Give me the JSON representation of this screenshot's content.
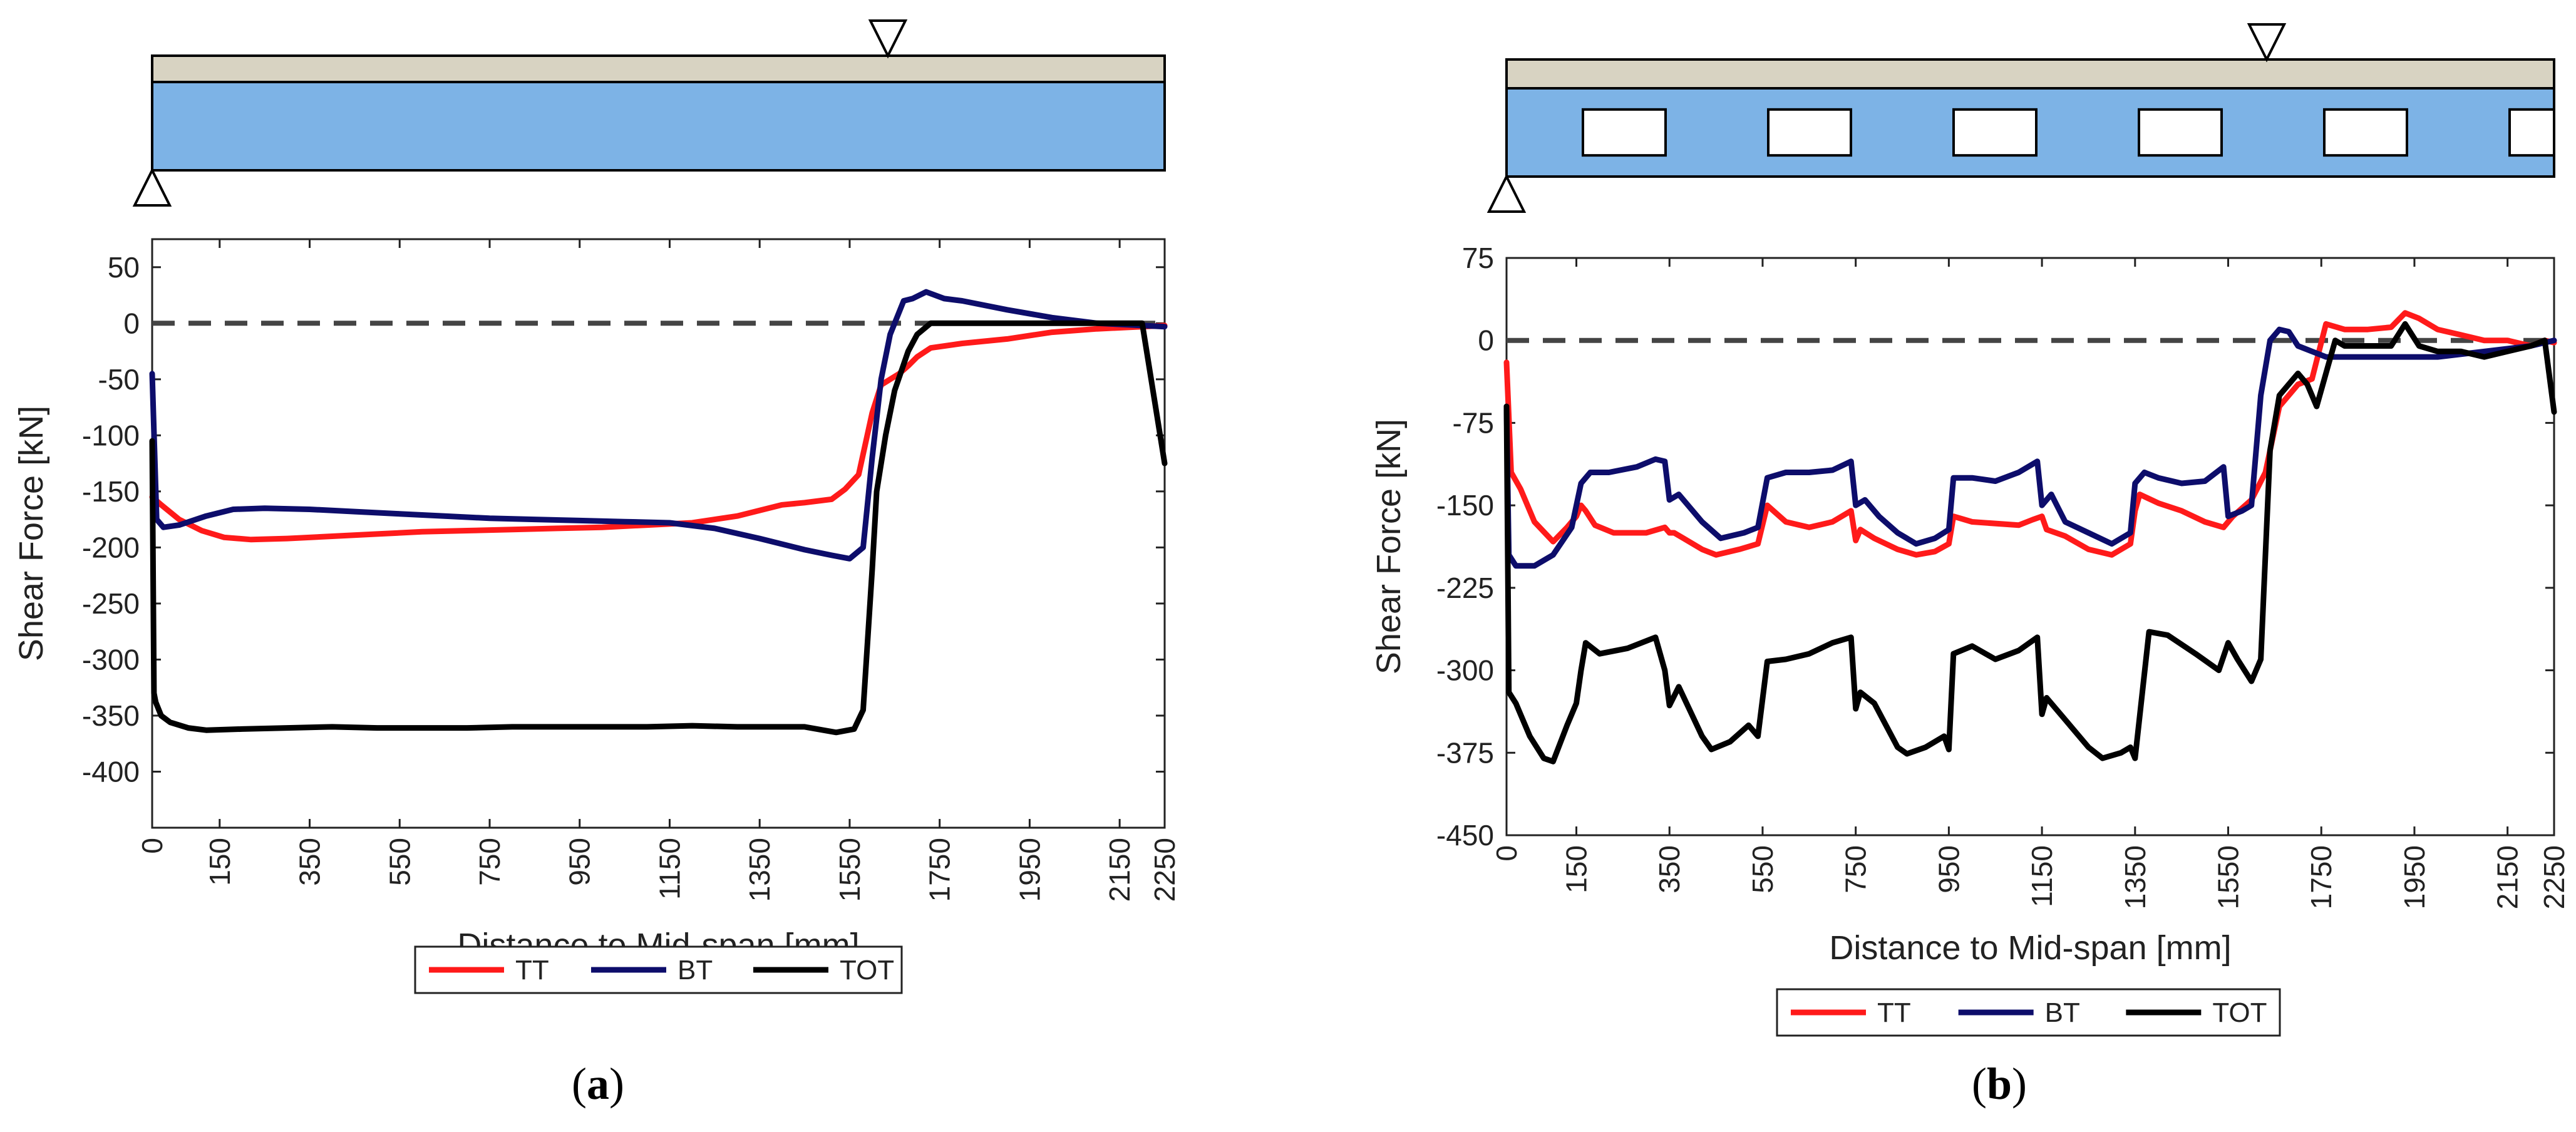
{
  "panels": [
    {
      "id": "a",
      "caption_letter": "a",
      "beam": {
        "openings": 0
      },
      "chart_data": {
        "type": "line",
        "xlabel": "Distance to Mid-span [mm]",
        "ylabel": "Shear Force [kN]",
        "xlim": [
          0,
          2250
        ],
        "ylim": [
          -450,
          75
        ],
        "xticks": [
          0,
          150,
          350,
          550,
          750,
          950,
          1150,
          1350,
          1550,
          1750,
          1950,
          2150,
          2250
        ],
        "yticks": [
          50,
          0,
          -50,
          -100,
          -150,
          -200,
          -250,
          -300,
          -350,
          -400
        ],
        "zero_line": true,
        "legend": [
          "TT",
          "BT",
          "TOT"
        ],
        "series": [
          {
            "name": "TT",
            "color": "#ff1a1a",
            "x": [
              0,
              20,
              60,
              110,
              160,
              220,
              300,
              400,
              500,
              600,
              700,
              800,
              900,
              1000,
              1100,
              1200,
              1300,
              1400,
              1450,
              1510,
              1540,
              1570,
              1600,
              1620,
              1640,
              1660,
              1680,
              1700,
              1730,
              1800,
              1900,
              2000,
              2100,
              2200,
              2250
            ],
            "y": [
              -155,
              -162,
              -175,
              -185,
              -191,
              -193,
              -192,
              -190,
              -188,
              -186,
              -185,
              -184,
              -183,
              -182,
              -180,
              -178,
              -172,
              -162,
              -160,
              -157,
              -148,
              -135,
              -80,
              -55,
              -50,
              -45,
              -38,
              -30,
              -22,
              -18,
              -14,
              -8,
              -5,
              -3,
              -2
            ]
          },
          {
            "name": "BT",
            "color": "#0d0d6b",
            "x": [
              0,
              10,
              25,
              60,
              120,
              180,
              250,
              350,
              450,
              550,
              650,
              750,
              850,
              950,
              1050,
              1150,
              1250,
              1350,
              1450,
              1510,
              1550,
              1580,
              1600,
              1620,
              1640,
              1670,
              1690,
              1720,
              1760,
              1800,
              1900,
              2000,
              2100,
              2200,
              2250
            ],
            "y": [
              -45,
              -175,
              -182,
              -180,
              -172,
              -166,
              -165,
              -166,
              -168,
              -170,
              -172,
              -174,
              -175,
              -176,
              -177,
              -178,
              -183,
              -192,
              -202,
              -207,
              -210,
              -200,
              -120,
              -50,
              -10,
              20,
              22,
              28,
              22,
              20,
              12,
              5,
              0,
              -2,
              -3
            ]
          },
          {
            "name": "TOT",
            "color": "#000000",
            "x": [
              0,
              4,
              8,
              20,
              40,
              80,
              120,
              200,
              300,
              400,
              500,
              600,
              700,
              800,
              900,
              1000,
              1100,
              1200,
              1300,
              1400,
              1450,
              1520,
              1560,
              1580,
              1600,
              1610,
              1630,
              1650,
              1680,
              1700,
              1730,
              1800,
              1900,
              2000,
              2100,
              2180,
              2200,
              2250
            ],
            "y": [
              -105,
              -330,
              -338,
              -350,
              -356,
              -361,
              -363,
              -362,
              -361,
              -360,
              -361,
              -361,
              -361,
              -360,
              -360,
              -360,
              -360,
              -359,
              -360,
              -360,
              -360,
              -365,
              -362,
              -345,
              -220,
              -150,
              -100,
              -60,
              -25,
              -10,
              0,
              0,
              0,
              0,
              0,
              0,
              0,
              -125
            ]
          }
        ]
      }
    },
    {
      "id": "b",
      "caption_letter": "b",
      "beam": {
        "openings": 6
      },
      "chart_data": {
        "type": "line",
        "xlabel": "Distance to Mid-span [mm]",
        "ylabel": "Shear Force [kN]",
        "xlim": [
          0,
          2250
        ],
        "ylim": [
          -450,
          75
        ],
        "xticks": [
          0,
          150,
          350,
          550,
          750,
          950,
          1150,
          1350,
          1550,
          1750,
          1950,
          2150,
          2250
        ],
        "yticks": [
          75,
          0,
          -75,
          -150,
          -225,
          -300,
          -375,
          -450
        ],
        "zero_line": true,
        "legend": [
          "TT",
          "BT",
          "TOT"
        ],
        "series": [
          {
            "name": "TT",
            "color": "#ff1a1a",
            "x": [
              0,
              10,
              30,
              60,
              100,
              130,
              150,
              160,
              170,
              190,
              230,
              300,
              340,
              350,
              360,
              380,
              420,
              450,
              500,
              540,
              560,
              600,
              650,
              700,
              740,
              750,
              760,
              790,
              840,
              880,
              920,
              950,
              960,
              1000,
              1100,
              1130,
              1150,
              1160,
              1200,
              1250,
              1300,
              1340,
              1350,
              1360,
              1400,
              1450,
              1500,
              1540,
              1560,
              1600,
              1630,
              1660,
              1700,
              1730,
              1760,
              1800,
              1850,
              1900,
              1930,
              1960,
              2000,
              2050,
              2100,
              2150,
              2200,
              2230,
              2250
            ],
            "y": [
              -20,
              -120,
              -135,
              -165,
              -183,
              -170,
              -160,
              -150,
              -155,
              -168,
              -175,
              -175,
              -170,
              -175,
              -175,
              -180,
              -190,
              -195,
              -190,
              -185,
              -150,
              -165,
              -170,
              -165,
              -155,
              -182,
              -172,
              -180,
              -190,
              -195,
              -192,
              -185,
              -160,
              -165,
              -168,
              -163,
              -160,
              -172,
              -178,
              -190,
              -195,
              -185,
              -155,
              -140,
              -148,
              -155,
              -165,
              -170,
              -160,
              -145,
              -120,
              -60,
              -40,
              -35,
              15,
              10,
              10,
              12,
              25,
              20,
              10,
              5,
              0,
              0,
              -5,
              0,
              -2
            ]
          },
          {
            "name": "BT",
            "color": "#0d0d6b",
            "x": [
              0,
              5,
              20,
              60,
              100,
              140,
              160,
              180,
              220,
              280,
              320,
              340,
              350,
              370,
              420,
              460,
              510,
              540,
              560,
              600,
              650,
              700,
              740,
              750,
              770,
              800,
              840,
              880,
              920,
              950,
              960,
              1000,
              1050,
              1100,
              1140,
              1150,
              1170,
              1200,
              1250,
              1300,
              1340,
              1350,
              1370,
              1400,
              1450,
              1500,
              1540,
              1550,
              1580,
              1600,
              1620,
              1640,
              1660,
              1680,
              1700,
              1730,
              1760,
              1800,
              1900,
              2000,
              2100,
              2200,
              2250
            ],
            "y": [
              -60,
              -195,
              -205,
              -205,
              -195,
              -170,
              -130,
              -120,
              -120,
              -115,
              -108,
              -110,
              -145,
              -140,
              -165,
              -180,
              -175,
              -170,
              -125,
              -120,
              -120,
              -118,
              -110,
              -150,
              -145,
              -160,
              -175,
              -185,
              -180,
              -172,
              -125,
              -125,
              -128,
              -120,
              -110,
              -150,
              -140,
              -165,
              -175,
              -185,
              -175,
              -130,
              -120,
              -125,
              -130,
              -128,
              -115,
              -160,
              -155,
              -150,
              -50,
              0,
              10,
              8,
              -5,
              -10,
              -15,
              -15,
              -15,
              -15,
              -10,
              -5,
              0
            ]
          },
          {
            "name": "TOT",
            "color": "#000000",
            "x": [
              0,
              5,
              20,
              50,
              80,
              100,
              130,
              150,
              160,
              170,
              200,
              260,
              320,
              340,
              350,
              370,
              420,
              440,
              480,
              520,
              540,
              560,
              600,
              650,
              700,
              740,
              750,
              760,
              790,
              840,
              860,
              900,
              940,
              950,
              960,
              1000,
              1050,
              1100,
              1140,
              1150,
              1160,
              1200,
              1250,
              1280,
              1320,
              1340,
              1350,
              1380,
              1420,
              1480,
              1530,
              1550,
              1570,
              1600,
              1620,
              1640,
              1660,
              1700,
              1720,
              1740,
              1780,
              1800,
              1850,
              1900,
              1930,
              1960,
              2000,
              2050,
              2100,
              2150,
              2200,
              2230,
              2250
            ],
            "y": [
              -60,
              -320,
              -330,
              -360,
              -380,
              -383,
              -350,
              -330,
              -300,
              -275,
              -285,
              -280,
              -270,
              -300,
              -332,
              -315,
              -360,
              -372,
              -365,
              -350,
              -360,
              -292,
              -290,
              -285,
              -275,
              -270,
              -335,
              -320,
              -330,
              -370,
              -376,
              -370,
              -360,
              -372,
              -285,
              -278,
              -290,
              -282,
              -270,
              -340,
              -325,
              -345,
              -370,
              -380,
              -375,
              -370,
              -380,
              -265,
              -268,
              -285,
              -300,
              -275,
              -290,
              -310,
              -290,
              -100,
              -50,
              -30,
              -40,
              -60,
              0,
              -5,
              -5,
              -5,
              15,
              -5,
              -10,
              -10,
              -15,
              -10,
              -5,
              0,
              -65
            ]
          }
        ]
      }
    }
  ]
}
